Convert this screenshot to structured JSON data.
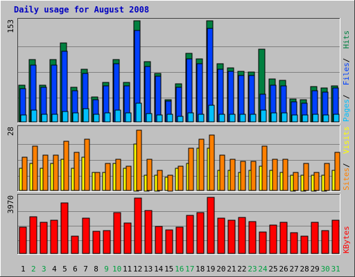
{
  "title": "Daily usage for August 2008",
  "colors": {
    "background": "#C0C0C0",
    "plot_bg": "#C0C0C0",
    "title": "#0000C0",
    "pages": "#0040FF",
    "files": "#00C0FF",
    "hits": "#008040",
    "sites": "#FF8000",
    "visits": "#FFFF00",
    "kbytes": "#FF0000",
    "weekend_label": "#00A040"
  },
  "chart_data": [
    {
      "type": "bar",
      "name": "pages_files_hits",
      "ymax_label": "153",
      "ylim": [
        0,
        153
      ],
      "legend": [
        {
          "label": "Pages",
          "color": "#00C0FF"
        },
        {
          "label": "Files",
          "color": "#0040FF"
        },
        {
          "label": "Hits",
          "color": "#008040"
        }
      ],
      "series": [
        {
          "name": "Hits",
          "values": [
            56,
            94,
            56,
            94,
            119,
            52,
            80,
            38,
            60,
            94,
            60,
            153,
            91,
            73,
            34,
            58,
            104,
            95,
            153,
            88,
            82,
            76,
            75,
            110,
            65,
            63,
            35,
            34,
            53,
            51,
            55
          ]
        },
        {
          "name": "Files",
          "values": [
            50,
            86,
            52,
            86,
            107,
            47,
            73,
            34,
            54,
            88,
            55,
            138,
            84,
            69,
            31,
            52,
            95,
            88,
            141,
            80,
            76,
            70,
            70,
            42,
            56,
            55,
            30,
            28,
            47,
            45,
            51
          ]
        },
        {
          "name": "Pages",
          "values": [
            10,
            18,
            12,
            12,
            16,
            14,
            20,
            12,
            14,
            18,
            14,
            28,
            13,
            10,
            12,
            8,
            14,
            12,
            25,
            12,
            12,
            12,
            12,
            18,
            14,
            14,
            10,
            10,
            12,
            10,
            12
          ]
        }
      ],
      "category_labels": [
        "1",
        "2",
        "3",
        "4",
        "5",
        "6",
        "7",
        "8",
        "9",
        "10",
        "11",
        "12",
        "13",
        "14",
        "15",
        "16",
        "17",
        "18",
        "19",
        "20",
        "21",
        "22",
        "23",
        "24",
        "25",
        "26",
        "27",
        "28",
        "29",
        "30",
        "31"
      ]
    },
    {
      "type": "bar",
      "name": "sites_visits",
      "ymax_label": "28",
      "ylim": [
        0,
        28
      ],
      "legend": [
        {
          "label": "Sites",
          "color": "#FF8000"
        },
        {
          "label": "Visits",
          "color": "#FFFF00"
        }
      ],
      "series": [
        {
          "name": "Visits",
          "values": [
            10,
            12,
            10,
            12,
            14,
            10,
            15,
            8,
            8,
            12,
            10,
            21,
            7,
            7,
            6,
            10,
            12,
            19,
            19,
            9,
            9,
            8,
            9,
            11,
            9,
            8,
            7,
            7,
            7,
            7,
            9
          ]
        },
        {
          "name": "Sites",
          "values": [
            15,
            20,
            16,
            16,
            22,
            17,
            23,
            8,
            12,
            14,
            11,
            27,
            14,
            9,
            7,
            11,
            19,
            23,
            25,
            16,
            14,
            13,
            13,
            20,
            14,
            14,
            8,
            12,
            8,
            12,
            17
          ]
        }
      ]
    },
    {
      "type": "bar",
      "name": "kbytes",
      "ymax_label": "3970",
      "ylim": [
        0,
        3970
      ],
      "legend": [
        {
          "label": "KBytes",
          "color": "#FF0000"
        }
      ],
      "series": [
        {
          "name": "KBytes",
          "values": [
            1860,
            2550,
            2160,
            2330,
            3520,
            1230,
            2450,
            1570,
            1580,
            2860,
            2110,
            3850,
            3000,
            1890,
            1650,
            1820,
            2660,
            2850,
            3900,
            2450,
            2300,
            2500,
            2230,
            1490,
            2000,
            2170,
            1470,
            1220,
            2200,
            1590,
            2320
          ]
        }
      ]
    }
  ]
}
